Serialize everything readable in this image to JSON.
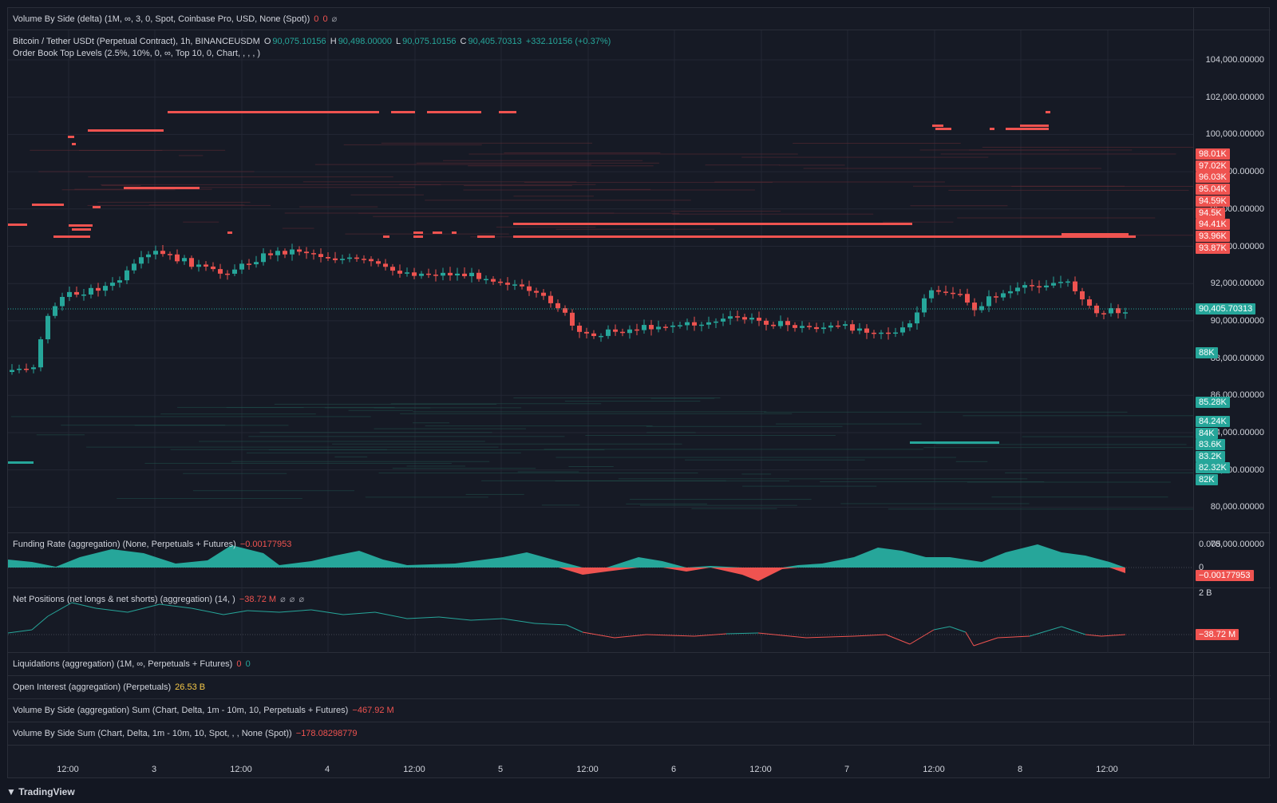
{
  "top_indicator": {
    "label": "Volume By Side (delta) (1M, ∞, 3, 0, Spot, Coinbase Pro, USD, None (Spot))",
    "v1": "0",
    "v2": "0",
    "v3": "⌀"
  },
  "symbol": {
    "name": "Bitcoin / Tether USDt (Perpetual Contract), 1h, BINANCEUSDM",
    "o_label": "O",
    "o": "90,075.10156",
    "h_label": "H",
    "h": "90,498.00000",
    "l_label": "L",
    "l": "90,075.10156",
    "c_label": "C",
    "c": "90,405.70313",
    "change": "+332.10156 (+0.37%)"
  },
  "orderbook_indicator": {
    "label": "Order Book Top Levels (2.5%, 10%, 0, ∞, Top 10, 0, Chart, , , , )"
  },
  "price_axis": [
    "104,000.00000",
    "102,000.00000",
    "100,000.00000",
    "98,000.00000",
    "96,000.00000",
    "94,000.00000",
    "92,000.00000",
    "90,000.00000",
    "88,000.00000",
    "86,000.00000",
    "84,000.00000",
    "82,000.00000",
    "80,000.00000",
    "78,000.00000"
  ],
  "ask_tags": [
    "98.01K",
    "97.02K",
    "96.03K",
    "95.04K",
    "94.59K",
    "94.5K",
    "94.41K",
    "93.96K",
    "93.87K"
  ],
  "bid_tags": [
    "88K",
    "85.28K",
    "84.24K",
    "84K",
    "83.6K",
    "83.2K",
    "82.32K",
    "82K"
  ],
  "last_price": "90,405.70313",
  "funding": {
    "label": "Funding Rate (aggregation) (None, Perpetuals + Futures)",
    "value": "−0.00177953",
    "axis_top": "0.005",
    "axis_zero": "0",
    "tag": "−0.00177953"
  },
  "net_positions": {
    "label": "Net Positions (net longs & net shorts) (aggregation) (14, )",
    "value": "−38.72 M",
    "s1": "⌀",
    "s2": "⌀",
    "s3": "⌀",
    "axis_top": "2 B",
    "tag": "−38.72 M"
  },
  "liquidations": {
    "label": "Liquidations (aggregation) (1M, ∞, Perpetuals + Futures)",
    "v1": "0",
    "v2": "0"
  },
  "open_interest": {
    "label": "Open Interest (aggregation) (Perpetuals)",
    "value": "26.53 B"
  },
  "vol_side_agg": {
    "label": "Volume By Side (aggregation) Sum (Chart, Delta, 1m - 10m, 10, Perpetuals + Futures)",
    "value": "−467.92 M"
  },
  "vol_side_sum": {
    "label": "Volume By Side Sum (Chart, Delta, 1m - 10m, 10, Spot, , , None (Spot))",
    "value": "−178.08298779"
  },
  "time_axis": [
    "12:00",
    "3",
    "12:00",
    "4",
    "12:00",
    "5",
    "12:00",
    "6",
    "12:00",
    "7",
    "12:00",
    "8",
    "12:00"
  ],
  "brand": "TradingView",
  "colors": {
    "up": "#26a69a",
    "down": "#ef5350",
    "bg": "#161a25",
    "grid": "#232734"
  }
}
